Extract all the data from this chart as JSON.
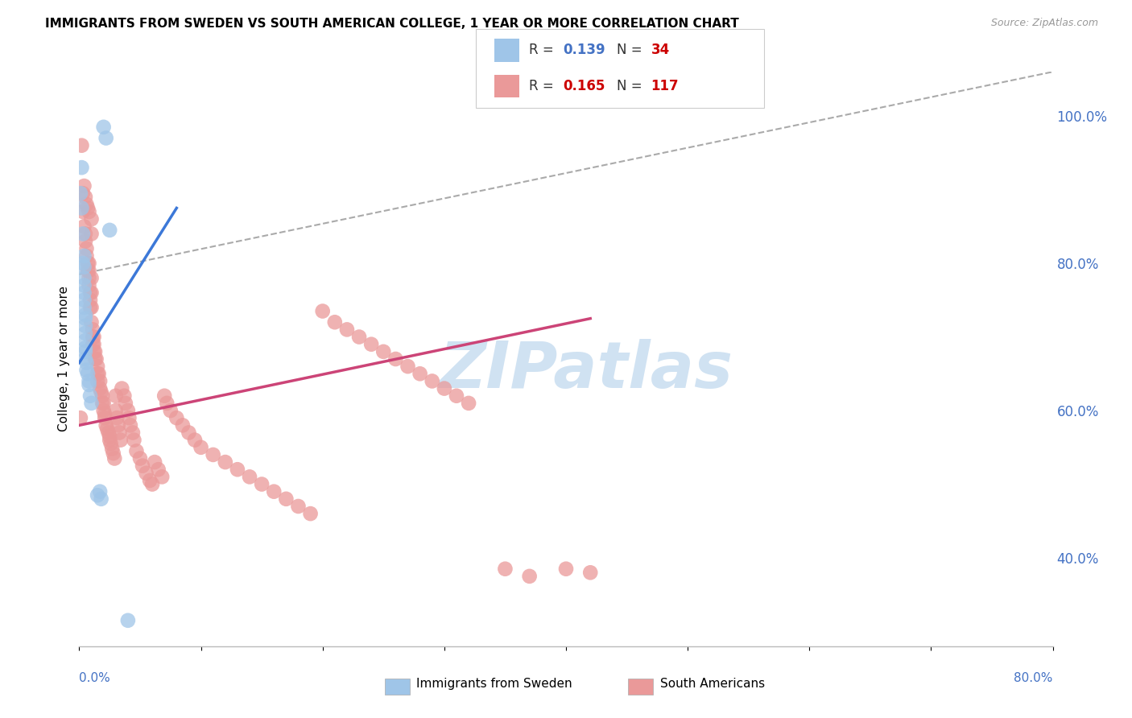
{
  "title": "IMMIGRANTS FROM SWEDEN VS SOUTH AMERICAN COLLEGE, 1 YEAR OR MORE CORRELATION CHART",
  "source": "Source: ZipAtlas.com",
  "ylabel": "College, 1 year or more",
  "xmin": 0.0,
  "xmax": 0.8,
  "ymin": 0.28,
  "ymax": 1.06,
  "right_yticks": [
    0.4,
    0.6,
    0.8,
    1.0
  ],
  "right_yticklabels": [
    "40.0%",
    "60.0%",
    "80.0%",
    "100.0%"
  ],
  "blue_color": "#9fc5e8",
  "pink_color": "#ea9999",
  "blue_line_color": "#3c78d8",
  "pink_line_color": "#cc4477",
  "dash_color": "#aaaaaa",
  "grid_color": "#dddddd",
  "background_color": "#ffffff",
  "blue_scatter_x": [
    0.001,
    0.002,
    0.002,
    0.003,
    0.003,
    0.004,
    0.004,
    0.004,
    0.004,
    0.004,
    0.004,
    0.004,
    0.005,
    0.005,
    0.005,
    0.005,
    0.005,
    0.005,
    0.005,
    0.005,
    0.006,
    0.006,
    0.007,
    0.008,
    0.008,
    0.009,
    0.01,
    0.015,
    0.017,
    0.018,
    0.02,
    0.022,
    0.025,
    0.04
  ],
  "blue_scatter_y": [
    0.895,
    0.93,
    0.875,
    0.84,
    0.8,
    0.81,
    0.795,
    0.78,
    0.77,
    0.76,
    0.75,
    0.74,
    0.73,
    0.725,
    0.715,
    0.705,
    0.695,
    0.685,
    0.68,
    0.67,
    0.665,
    0.655,
    0.65,
    0.64,
    0.635,
    0.62,
    0.61,
    0.485,
    0.49,
    0.48,
    0.985,
    0.97,
    0.845,
    0.315
  ],
  "pink_scatter_x": [
    0.001,
    0.002,
    0.003,
    0.003,
    0.004,
    0.004,
    0.005,
    0.005,
    0.005,
    0.006,
    0.006,
    0.006,
    0.007,
    0.007,
    0.007,
    0.008,
    0.008,
    0.008,
    0.008,
    0.008,
    0.009,
    0.009,
    0.009,
    0.01,
    0.01,
    0.01,
    0.01,
    0.01,
    0.01,
    0.011,
    0.011,
    0.011,
    0.012,
    0.012,
    0.012,
    0.013,
    0.013,
    0.014,
    0.015,
    0.015,
    0.015,
    0.016,
    0.017,
    0.017,
    0.018,
    0.019,
    0.019,
    0.02,
    0.02,
    0.021,
    0.021,
    0.022,
    0.023,
    0.024,
    0.025,
    0.025,
    0.026,
    0.027,
    0.028,
    0.029,
    0.03,
    0.03,
    0.031,
    0.032,
    0.033,
    0.034,
    0.035,
    0.037,
    0.038,
    0.04,
    0.041,
    0.042,
    0.044,
    0.045,
    0.047,
    0.05,
    0.052,
    0.055,
    0.058,
    0.06,
    0.062,
    0.065,
    0.068,
    0.07,
    0.072,
    0.075,
    0.08,
    0.085,
    0.09,
    0.095,
    0.1,
    0.11,
    0.12,
    0.13,
    0.14,
    0.15,
    0.16,
    0.17,
    0.18,
    0.19,
    0.2,
    0.21,
    0.22,
    0.23,
    0.24,
    0.25,
    0.26,
    0.27,
    0.28,
    0.29,
    0.3,
    0.31,
    0.32,
    0.35,
    0.37,
    0.4,
    0.42
  ],
  "pink_scatter_y": [
    0.59,
    0.96,
    0.895,
    0.87,
    0.905,
    0.85,
    0.89,
    0.84,
    0.83,
    0.88,
    0.82,
    0.81,
    0.875,
    0.8,
    0.79,
    0.87,
    0.8,
    0.79,
    0.78,
    0.77,
    0.76,
    0.75,
    0.74,
    0.86,
    0.84,
    0.78,
    0.76,
    0.74,
    0.72,
    0.71,
    0.7,
    0.69,
    0.7,
    0.69,
    0.68,
    0.68,
    0.67,
    0.67,
    0.66,
    0.65,
    0.64,
    0.65,
    0.64,
    0.63,
    0.625,
    0.62,
    0.61,
    0.61,
    0.6,
    0.595,
    0.59,
    0.58,
    0.575,
    0.57,
    0.565,
    0.56,
    0.555,
    0.548,
    0.542,
    0.535,
    0.62,
    0.6,
    0.59,
    0.58,
    0.57,
    0.56,
    0.63,
    0.62,
    0.61,
    0.6,
    0.59,
    0.58,
    0.57,
    0.56,
    0.545,
    0.535,
    0.525,
    0.515,
    0.505,
    0.5,
    0.53,
    0.52,
    0.51,
    0.62,
    0.61,
    0.6,
    0.59,
    0.58,
    0.57,
    0.56,
    0.55,
    0.54,
    0.53,
    0.52,
    0.51,
    0.5,
    0.49,
    0.48,
    0.47,
    0.46,
    0.735,
    0.72,
    0.71,
    0.7,
    0.69,
    0.68,
    0.67,
    0.66,
    0.65,
    0.64,
    0.63,
    0.62,
    0.61,
    0.385,
    0.375,
    0.385,
    0.38
  ],
  "blue_line_x": [
    0.0,
    0.08
  ],
  "blue_line_y": [
    0.665,
    0.875
  ],
  "pink_line_x": [
    0.0,
    0.42
  ],
  "pink_line_y": [
    0.58,
    0.725
  ],
  "dash_line_x": [
    0.0,
    0.8
  ],
  "dash_line_y": [
    0.785,
    1.06
  ],
  "watermark_text": "ZIPatlas",
  "watermark_color": "#c8ddf0",
  "legend_R_blue": "0.139",
  "legend_N_blue": "34",
  "legend_R_pink": "0.165",
  "legend_N_pink": "117"
}
